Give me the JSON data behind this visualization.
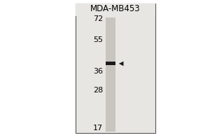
{
  "title": "MDA-MB453",
  "outer_bg_color": "#ffffff",
  "panel_bg_color": "#e8e6e2",
  "lane_color": "#c8c5be",
  "band_color": "#1a1a1a",
  "arrow_color": "#1a1a1a",
  "border_color": "#555555",
  "mw_markers": [
    72,
    55,
    36,
    28,
    17
  ],
  "mw_labels": [
    "72",
    "55",
    "36",
    "28",
    "17"
  ],
  "band_mw": 40,
  "mw_log_min": 1.204,
  "mw_log_max": 1.875,
  "title_fontsize": 8.5,
  "label_fontsize": 8
}
